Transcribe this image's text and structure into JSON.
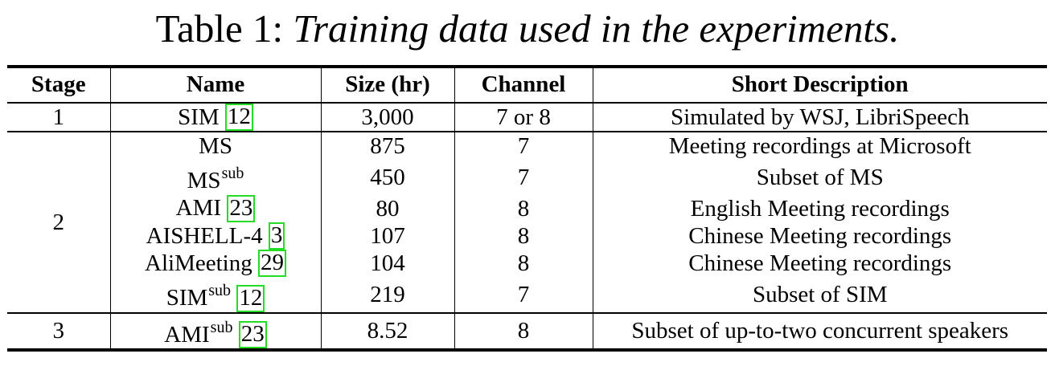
{
  "caption": {
    "prefix": "Table 1: ",
    "text": "Training data used in the experiments."
  },
  "headers": {
    "stage": "Stage",
    "name": "Name",
    "size": "Size (hr)",
    "channel": "Channel",
    "description": "Short Description"
  },
  "rows": [
    {
      "stage": "1",
      "name": "SIM",
      "sup": "",
      "ref": "12",
      "size": "3,000",
      "channel": "7 or 8",
      "description": "Simulated by WSJ, LibriSpeech"
    },
    {
      "stage": "2",
      "name": "MS",
      "sup": "",
      "ref": "",
      "size": "875",
      "channel": "7",
      "description": "Meeting recordings at Microsoft"
    },
    {
      "stage": "",
      "name": "MS",
      "sup": "sub",
      "ref": "",
      "size": "450",
      "channel": "7",
      "description": "Subset of MS"
    },
    {
      "stage": "",
      "name": "AMI",
      "sup": "",
      "ref": "23",
      "size": "80",
      "channel": "8",
      "description": "English Meeting recordings"
    },
    {
      "stage": "",
      "name": "AISHELL-4",
      "sup": "",
      "ref": "3",
      "size": "107",
      "channel": "8",
      "description": "Chinese Meeting recordings"
    },
    {
      "stage": "",
      "name": "AliMeeting",
      "sup": "",
      "ref": "29",
      "size": "104",
      "channel": "8",
      "description": "Chinese Meeting recordings"
    },
    {
      "stage": "",
      "name": "SIM",
      "sup": "sub",
      "ref": "12",
      "size": "219",
      "channel": "7",
      "description": "Subset of SIM"
    },
    {
      "stage": "3",
      "name": "AMI",
      "sup": "sub",
      "ref": "23",
      "size": "8.52",
      "channel": "8",
      "description": "Subset of up-to-two concurrent speakers"
    }
  ]
}
